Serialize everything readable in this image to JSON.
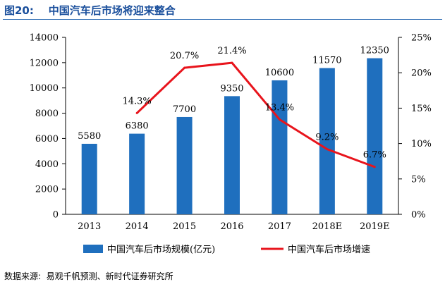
{
  "figure": {
    "title": "图20:    中国汽车后市场将迎来整合",
    "source": "数据来源:  易观千帆预测、新时代证券研究所"
  },
  "chart_data": {
    "type": "bar",
    "categories": [
      "2013",
      "2014",
      "2015",
      "2016",
      "2017",
      "2018E",
      "2019E"
    ],
    "series": [
      {
        "name": "中国汽车后市场规模(亿元)",
        "type": "bar",
        "axis": "left",
        "color": "#1f6fbe",
        "values": [
          5580,
          6380,
          7700,
          9350,
          10600,
          11570,
          12350
        ],
        "labels": [
          "5580",
          "6380",
          "7700",
          "9350",
          "10600",
          "11570",
          "12350"
        ]
      },
      {
        "name": "中国汽车后市场增速",
        "type": "line",
        "axis": "right",
        "color": "#e8141c",
        "values": [
          null,
          14.3,
          20.7,
          21.4,
          13.4,
          9.2,
          6.7
        ],
        "labels": [
          null,
          "14.3%",
          "20.7%",
          "21.4%",
          "13.4%",
          "9.2%",
          "6.7%"
        ]
      }
    ],
    "y_left": {
      "lim": [
        0,
        14000
      ],
      "ticks": [
        0,
        2000,
        4000,
        6000,
        8000,
        10000,
        12000,
        14000
      ],
      "tick_labels": [
        "0",
        "2000",
        "4000",
        "6000",
        "8000",
        "10000",
        "12000",
        "14000"
      ]
    },
    "y_right": {
      "lim": [
        0,
        25
      ],
      "ticks": [
        0,
        5,
        10,
        15,
        20,
        25
      ],
      "tick_labels": [
        "0%",
        "5%",
        "10%",
        "15%",
        "20%",
        "25%"
      ]
    },
    "legend": {
      "position": "bottom",
      "items": [
        "中国汽车后市场规模(亿元)",
        "中国汽车后市场增速"
      ]
    },
    "grid": false
  }
}
